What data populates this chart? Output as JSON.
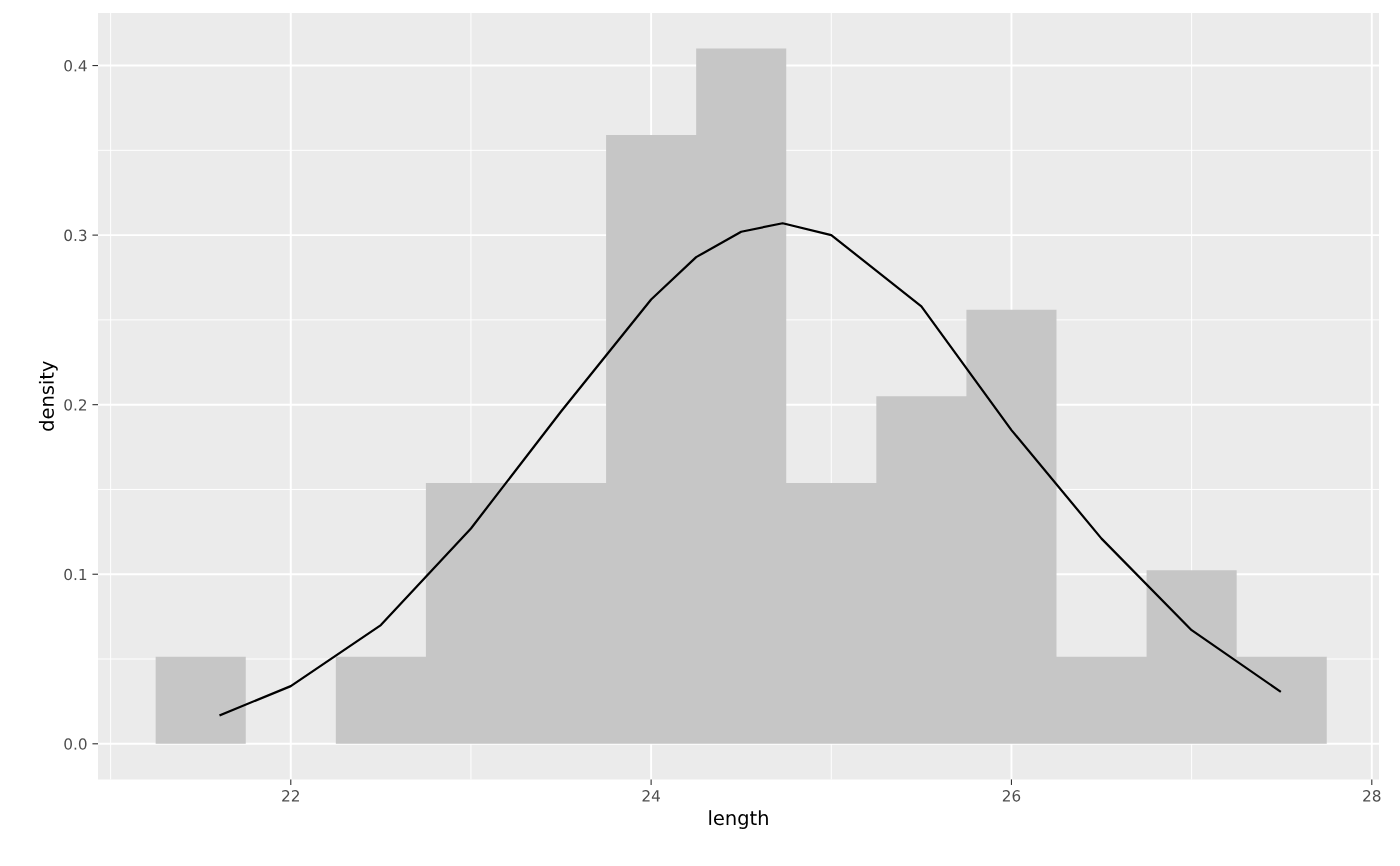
{
  "chart_data": {
    "type": "histogram",
    "xlabel": "length",
    "ylabel": "density",
    "bins": [
      21.25,
      21.75,
      22.25,
      22.75,
      23.25,
      23.75,
      24.25,
      24.75,
      25.25,
      25.75,
      26.25,
      26.75,
      27.25,
      27.75
    ],
    "values": [
      0.0513,
      0,
      0.0513,
      0.1538,
      0.1538,
      0.359,
      0.41,
      0.1538,
      0.205,
      0.256,
      0.0513,
      0.1024,
      0.0513
    ],
    "color": "#c6c6c6",
    "series": [
      {
        "type": "line",
        "color": "#000000",
        "x": [
          21.61,
          22.0,
          22.5,
          23.0,
          23.5,
          24.0,
          24.25,
          24.5,
          24.73,
          25.0,
          25.5,
          26.0,
          26.5,
          27.0,
          27.49
        ],
        "values": [
          0.017,
          0.034,
          0.07,
          0.127,
          0.196,
          0.262,
          0.287,
          0.302,
          0.307,
          0.3,
          0.258,
          0.185,
          0.121,
          0.067,
          0.031
        ]
      }
    ],
    "xlim": [
      20.93,
      28.04
    ],
    "ylim": [
      -0.021,
      0.431
    ],
    "xticks": [
      22,
      24,
      26,
      28
    ],
    "yticks": [
      {
        "value": 0,
        "label": "0.0"
      },
      0.1,
      0.2,
      0.3,
      0.4
    ],
    "grid": true
  }
}
